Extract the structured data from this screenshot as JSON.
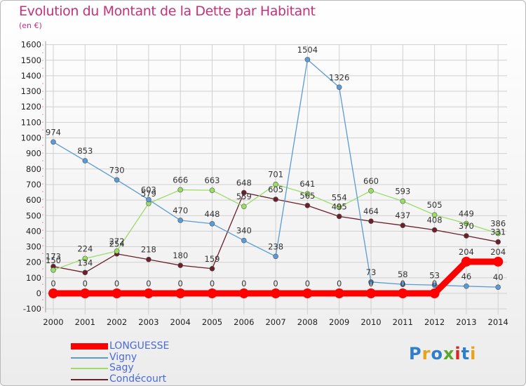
{
  "title": "Evolution du Montant de la Dette par Habitant",
  "subtitle": "(en €)",
  "logo": {
    "text": "Proxiti",
    "colors": [
      "#2e7ecb",
      "#e8a21c",
      "#2e7ecb",
      "#5aa62f",
      "#d9261c",
      "#2e7ecb",
      "#e8a21c"
    ]
  },
  "chart_data": {
    "type": "line",
    "title": "Evolution du Montant de la Dette par Habitant",
    "ylabel": "(en €)",
    "xlabel": "",
    "ylim": [
      -100,
      1600
    ],
    "y_ticks": [
      "1600",
      "1500",
      "1400",
      "1300",
      "1200",
      "1100",
      "1000",
      "900",
      "800",
      "700",
      "600",
      "500",
      "400",
      "300",
      "200",
      "100",
      "0",
      "-100"
    ],
    "x": [
      "2000",
      "2001",
      "2002",
      "2003",
      "2004",
      "2005",
      "2006",
      "2007",
      "2008",
      "2009",
      "2010",
      "2011",
      "2012",
      "2013",
      "2014"
    ],
    "grid": true,
    "legend_position": "bottom-left",
    "series": [
      {
        "name": "LONGUESSE",
        "color": "#ff0000",
        "values": [
          0,
          0,
          0,
          0,
          0,
          0,
          0,
          0,
          0,
          0,
          0,
          0,
          0,
          204,
          204
        ],
        "labels": [
          "0",
          "0",
          "0",
          "0",
          "0",
          "0",
          "0",
          "0",
          "0",
          "0",
          "0",
          "0",
          "0",
          "204",
          "204"
        ]
      },
      {
        "name": "Vigny",
        "color": "#5b9bd5",
        "values": [
          974,
          853,
          730,
          603,
          470,
          448,
          340,
          238,
          1504,
          1326,
          73,
          58,
          53,
          46,
          40
        ],
        "labels": [
          "974",
          "853",
          "730",
          "603",
          "470",
          "448",
          "340",
          "238",
          "1504",
          "1326",
          "73",
          "58",
          "53",
          "46",
          "40"
        ]
      },
      {
        "name": "Sagy",
        "color": "#99dd66",
        "values": [
          150,
          224,
          272,
          579,
          666,
          663,
          559,
          701,
          641,
          554,
          660,
          593,
          505,
          449,
          386
        ],
        "labels": [
          "150",
          "224",
          "272",
          "579",
          "666",
          "663",
          "559",
          "701",
          "641",
          "554",
          "660",
          "593",
          "505",
          "449",
          "386"
        ]
      },
      {
        "name": "Condécourt",
        "color": "#6b1f2a",
        "values": [
          173,
          134,
          254,
          218,
          180,
          159,
          648,
          605,
          565,
          495,
          464,
          437,
          408,
          370,
          331
        ],
        "labels": [
          "173",
          "134",
          "254",
          "218",
          "180",
          "159",
          "648",
          "605",
          "565",
          "495",
          "464",
          "437",
          "408",
          "370",
          "331"
        ]
      }
    ]
  }
}
